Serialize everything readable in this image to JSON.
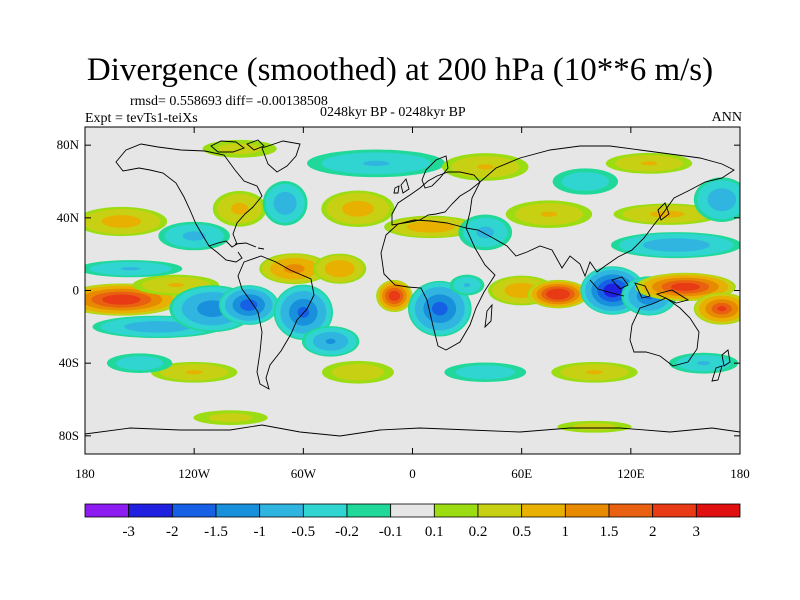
{
  "title": "Divergence (smoothed) at 200 hPa (10**6 m/s)",
  "stats_line": "rmsd= 0.558693  diff= -0.00138508",
  "experiment_line": "Expt = tevTs1-teiXs",
  "period_line": "0248kyr BP - 0248kyr BP",
  "season": "ANN",
  "chart_data": {
    "type": "heatmap",
    "title": "Divergence (smoothed) at 200 hPa (10**6 m/s)",
    "projection": "cylindrical equidistant",
    "x_range": [
      -180,
      180
    ],
    "y_range": [
      -90,
      90
    ],
    "x_ticks": [
      {
        "value": -180,
        "label": "180"
      },
      {
        "value": -120,
        "label": "120W"
      },
      {
        "value": -60,
        "label": "60W"
      },
      {
        "value": 0,
        "label": "0"
      },
      {
        "value": 60,
        "label": "60E"
      },
      {
        "value": 120,
        "label": "120E"
      },
      {
        "value": 180,
        "label": "180"
      }
    ],
    "y_ticks": [
      {
        "value": 80,
        "label": "80N"
      },
      {
        "value": 40,
        "label": "40N"
      },
      {
        "value": 0,
        "label": "0"
      },
      {
        "value": -40,
        "label": "40S"
      },
      {
        "value": -80,
        "label": "80S"
      }
    ],
    "colorbar": {
      "colors": [
        "#8c1cf0",
        "#2020e0",
        "#1660e6",
        "#1890dc",
        "#30b4e0",
        "#30d4d0",
        "#20d89a",
        "#e6e6e6",
        "#9cdc12",
        "#c8d014",
        "#e8b000",
        "#e88a00",
        "#e86010",
        "#e83a14",
        "#e01010"
      ],
      "labels": [
        "-3",
        "-2",
        "-1.5",
        "-1",
        "-0.5",
        "-0.2",
        "-0.1",
        "0.1",
        "0.2",
        "0.5",
        "1",
        "1.5",
        "2",
        "3"
      ]
    },
    "features": [
      {
        "lon": -160,
        "lat": -5,
        "value": 2.5,
        "rx": 30,
        "ry": 8
      },
      {
        "lon": -130,
        "lat": 3,
        "value": 0.5,
        "rx": 25,
        "ry": 6
      },
      {
        "lon": -140,
        "lat": -20,
        "value": -0.8,
        "rx": 35,
        "ry": 6
      },
      {
        "lon": -155,
        "lat": 12,
        "value": -0.5,
        "rx": 30,
        "ry": 5
      },
      {
        "lon": -110,
        "lat": -10,
        "value": -1.3,
        "rx": 22,
        "ry": 12
      },
      {
        "lon": -90,
        "lat": -8,
        "value": -1.8,
        "rx": 15,
        "ry": 10
      },
      {
        "lon": -60,
        "lat": -12,
        "value": -1.6,
        "rx": 15,
        "ry": 14
      },
      {
        "lon": -45,
        "lat": -28,
        "value": -1.0,
        "rx": 15,
        "ry": 8
      },
      {
        "lon": -65,
        "lat": 12,
        "value": 1.2,
        "rx": 18,
        "ry": 8
      },
      {
        "lon": -40,
        "lat": 12,
        "value": 0.9,
        "rx": 14,
        "ry": 8
      },
      {
        "lon": -10,
        "lat": -3,
        "value": 2.5,
        "rx": 9,
        "ry": 8
      },
      {
        "lon": 15,
        "lat": -10,
        "value": -1.7,
        "rx": 16,
        "ry": 14
      },
      {
        "lon": 30,
        "lat": 3,
        "value": -0.5,
        "rx": 10,
        "ry": 6
      },
      {
        "lon": 60,
        "lat": 0,
        "value": 0.8,
        "rx": 18,
        "ry": 8
      },
      {
        "lon": 80,
        "lat": -2,
        "value": 2.8,
        "rx": 15,
        "ry": 7
      },
      {
        "lon": 110,
        "lat": 0,
        "value": -2.4,
        "rx": 16,
        "ry": 12
      },
      {
        "lon": 130,
        "lat": -3,
        "value": -1.5,
        "rx": 14,
        "ry": 10
      },
      {
        "lon": 150,
        "lat": 2,
        "value": 2.4,
        "rx": 25,
        "ry": 7
      },
      {
        "lon": 170,
        "lat": -10,
        "value": 2.0,
        "rx": 14,
        "ry": 8
      },
      {
        "lon": 145,
        "lat": 25,
        "value": -0.8,
        "rx": 35,
        "ry": 7
      },
      {
        "lon": 140,
        "lat": 42,
        "value": 0.6,
        "rx": 30,
        "ry": 6
      },
      {
        "lon": -160,
        "lat": 38,
        "value": 0.7,
        "rx": 25,
        "ry": 8
      },
      {
        "lon": -120,
        "lat": 30,
        "value": -0.6,
        "rx": 20,
        "ry": 8
      },
      {
        "lon": -95,
        "lat": 45,
        "value": 0.6,
        "rx": 15,
        "ry": 10
      },
      {
        "lon": -70,
        "lat": 48,
        "value": -0.8,
        "rx": 12,
        "ry": 12
      },
      {
        "lon": -30,
        "lat": 45,
        "value": 0.7,
        "rx": 20,
        "ry": 10
      },
      {
        "lon": 10,
        "lat": 35,
        "value": 0.8,
        "rx": 25,
        "ry": 6
      },
      {
        "lon": 40,
        "lat": 32,
        "value": -0.6,
        "rx": 15,
        "ry": 10
      },
      {
        "lon": 75,
        "lat": 42,
        "value": 0.5,
        "rx": 25,
        "ry": 8
      },
      {
        "lon": 170,
        "lat": 50,
        "value": -0.8,
        "rx": 15,
        "ry": 12
      },
      {
        "lon": -20,
        "lat": 70,
        "value": -0.5,
        "rx": 40,
        "ry": 8
      },
      {
        "lon": 40,
        "lat": 68,
        "value": 0.5,
        "rx": 25,
        "ry": 8
      },
      {
        "lon": 130,
        "lat": 70,
        "value": 0.5,
        "rx": 25,
        "ry": 6
      },
      {
        "lon": 95,
        "lat": 60,
        "value": -0.4,
        "rx": 20,
        "ry": 8
      },
      {
        "lon": -95,
        "lat": 78,
        "value": 0.3,
        "rx": 25,
        "ry": 6
      },
      {
        "lon": -120,
        "lat": -45,
        "value": 0.5,
        "rx": 25,
        "ry": 6
      },
      {
        "lon": -150,
        "lat": -40,
        "value": -0.4,
        "rx": 20,
        "ry": 6
      },
      {
        "lon": -30,
        "lat": -45,
        "value": 0.4,
        "rx": 22,
        "ry": 7
      },
      {
        "lon": 40,
        "lat": -45,
        "value": -0.4,
        "rx": 25,
        "ry": 6
      },
      {
        "lon": 100,
        "lat": -45,
        "value": 0.5,
        "rx": 25,
        "ry": 6
      },
      {
        "lon": 160,
        "lat": -40,
        "value": -0.5,
        "rx": 20,
        "ry": 6
      },
      {
        "lon": -100,
        "lat": -70,
        "value": 0.3,
        "rx": 25,
        "ry": 5
      },
      {
        "lon": 100,
        "lat": -75,
        "value": 0.3,
        "rx": 25,
        "ry": 4
      }
    ]
  }
}
